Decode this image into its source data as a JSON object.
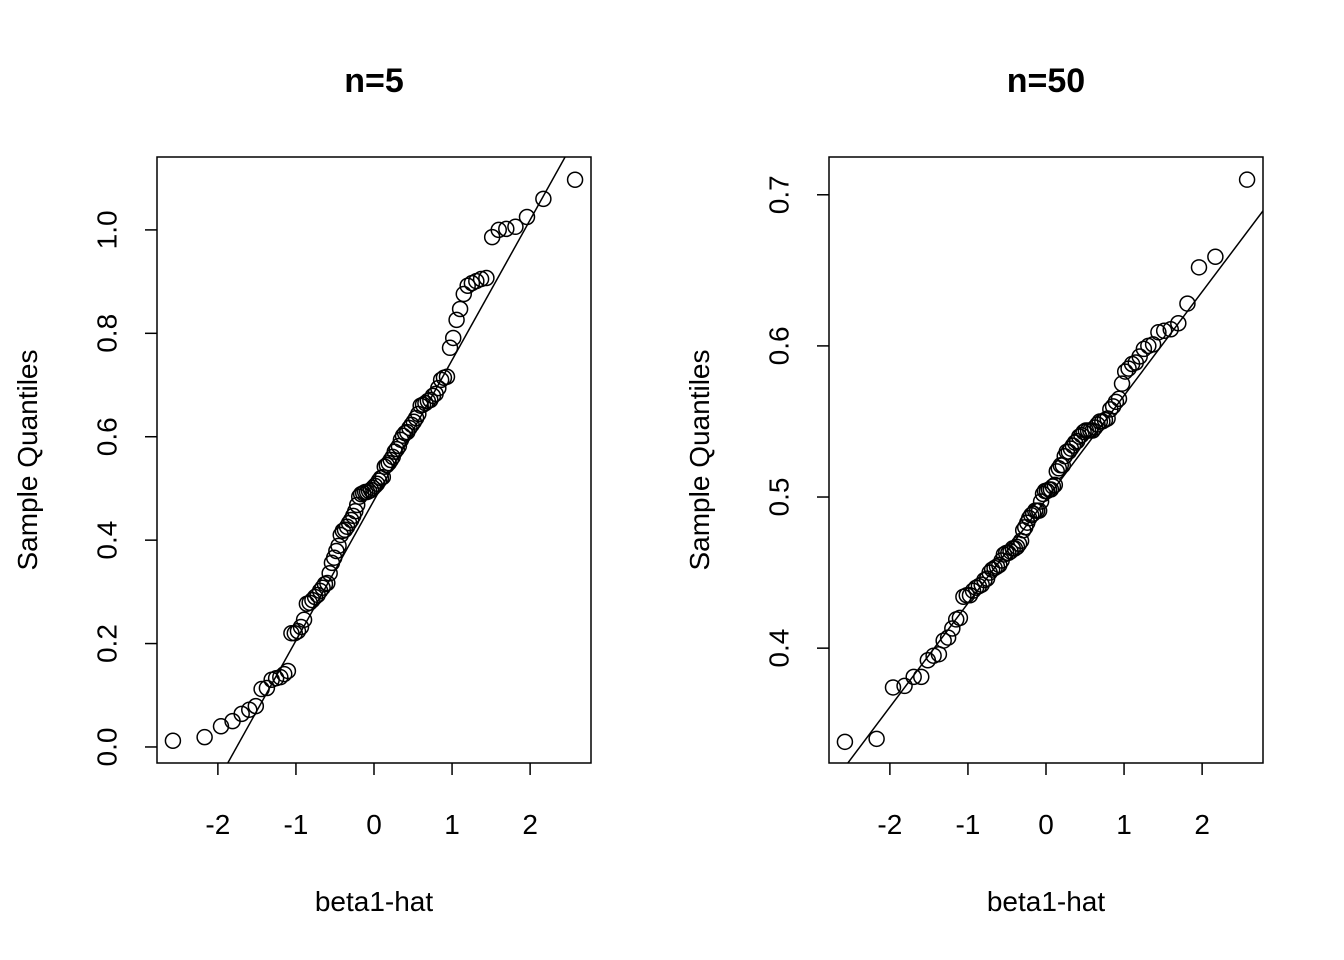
{
  "chart_data": [
    {
      "type": "scatter",
      "title": "n=5",
      "xlabel": "beta1-hat",
      "ylabel": "Sample Quantiles",
      "x": [
        -2.576,
        -2.17,
        -1.96,
        -1.812,
        -1.695,
        -1.598,
        -1.514,
        -1.44,
        -1.372,
        -1.311,
        -1.254,
        -1.2,
        -1.15,
        -1.103,
        -1.058,
        -1.015,
        -0.974,
        -0.935,
        -0.896,
        -0.86,
        -0.824,
        -0.789,
        -0.755,
        -0.722,
        -0.69,
        -0.659,
        -0.628,
        -0.598,
        -0.568,
        -0.539,
        -0.51,
        -0.482,
        -0.454,
        -0.426,
        -0.399,
        -0.372,
        -0.345,
        -0.319,
        -0.292,
        -0.266,
        -0.24,
        -0.215,
        -0.189,
        -0.164,
        -0.138,
        -0.113,
        -0.088,
        -0.063,
        -0.038,
        -0.013,
        0.013,
        0.038,
        0.063,
        0.088,
        0.113,
        0.138,
        0.164,
        0.189,
        0.215,
        0.24,
        0.266,
        0.292,
        0.319,
        0.345,
        0.372,
        0.399,
        0.426,
        0.454,
        0.482,
        0.51,
        0.539,
        0.568,
        0.598,
        0.628,
        0.659,
        0.69,
        0.722,
        0.755,
        0.789,
        0.824,
        0.86,
        0.896,
        0.935,
        0.974,
        1.015,
        1.058,
        1.103,
        1.15,
        1.2,
        1.254,
        1.311,
        1.372,
        1.44,
        1.514,
        1.598,
        1.695,
        1.812,
        1.96,
        2.17,
        2.576
      ],
      "values": [
        0.012,
        0.019,
        0.04,
        0.05,
        0.064,
        0.072,
        0.079,
        0.112,
        0.114,
        0.13,
        0.133,
        0.135,
        0.141,
        0.147,
        0.22,
        0.22,
        0.224,
        0.232,
        0.246,
        0.277,
        0.279,
        0.284,
        0.29,
        0.294,
        0.302,
        0.308,
        0.315,
        0.317,
        0.336,
        0.356,
        0.366,
        0.379,
        0.389,
        0.41,
        0.418,
        0.42,
        0.426,
        0.433,
        0.439,
        0.447,
        0.456,
        0.468,
        0.484,
        0.489,
        0.491,
        0.493,
        0.493,
        0.495,
        0.497,
        0.501,
        0.505,
        0.509,
        0.515,
        0.52,
        0.522,
        0.542,
        0.545,
        0.549,
        0.555,
        0.561,
        0.571,
        0.576,
        0.582,
        0.594,
        0.602,
        0.607,
        0.609,
        0.617,
        0.623,
        0.629,
        0.636,
        0.644,
        0.66,
        0.662,
        0.665,
        0.669,
        0.671,
        0.679,
        0.683,
        0.694,
        0.71,
        0.714,
        0.716,
        0.772,
        0.791,
        0.826,
        0.847,
        0.876,
        0.892,
        0.897,
        0.901,
        0.905,
        0.907,
        0.986,
        1.0,
        1.002,
        1.006,
        1.025,
        1.06,
        1.097
      ],
      "color": "#000000",
      "qqline": {
        "intercept": 0.477,
        "slope": 0.2712
      },
      "xlim": [
        -2.78,
        2.78
      ],
      "xticks": [
        -2,
        -1,
        0,
        1,
        2
      ],
      "ylim": [
        -0.031,
        1.141
      ],
      "yticks": [
        {
          "value": 0,
          "label": "0.0"
        },
        0.2,
        0.4,
        0.6,
        0.8,
        {
          "value": 1,
          "label": "1.0"
        }
      ]
    },
    {
      "type": "scatter",
      "title": "n=50",
      "xlabel": "beta1-hat",
      "ylabel": "Sample Quantiles",
      "x": [
        -2.576,
        -2.17,
        -1.96,
        -1.812,
        -1.695,
        -1.598,
        -1.514,
        -1.44,
        -1.372,
        -1.311,
        -1.254,
        -1.2,
        -1.15,
        -1.103,
        -1.058,
        -1.015,
        -0.974,
        -0.935,
        -0.896,
        -0.86,
        -0.824,
        -0.789,
        -0.755,
        -0.722,
        -0.69,
        -0.659,
        -0.628,
        -0.598,
        -0.568,
        -0.539,
        -0.51,
        -0.482,
        -0.454,
        -0.426,
        -0.399,
        -0.372,
        -0.345,
        -0.319,
        -0.292,
        -0.266,
        -0.24,
        -0.215,
        -0.189,
        -0.164,
        -0.138,
        -0.113,
        -0.088,
        -0.063,
        -0.038,
        -0.013,
        0.013,
        0.038,
        0.063,
        0.088,
        0.113,
        0.138,
        0.164,
        0.189,
        0.215,
        0.24,
        0.266,
        0.292,
        0.319,
        0.345,
        0.372,
        0.399,
        0.426,
        0.454,
        0.482,
        0.51,
        0.539,
        0.568,
        0.598,
        0.628,
        0.659,
        0.69,
        0.722,
        0.755,
        0.789,
        0.824,
        0.86,
        0.896,
        0.935,
        0.974,
        1.015,
        1.058,
        1.103,
        1.15,
        1.2,
        1.254,
        1.311,
        1.372,
        1.44,
        1.514,
        1.598,
        1.695,
        1.812,
        1.96,
        2.17,
        2.576
      ],
      "values": [
        0.338,
        0.34,
        0.374,
        0.375,
        0.381,
        0.381,
        0.392,
        0.395,
        0.396,
        0.405,
        0.407,
        0.413,
        0.419,
        0.42,
        0.434,
        0.435,
        0.435,
        0.438,
        0.44,
        0.441,
        0.442,
        0.445,
        0.446,
        0.45,
        0.452,
        0.453,
        0.454,
        0.455,
        0.458,
        0.462,
        0.463,
        0.463,
        0.464,
        0.466,
        0.466,
        0.467,
        0.469,
        0.471,
        0.478,
        0.48,
        0.483,
        0.486,
        0.488,
        0.489,
        0.491,
        0.491,
        0.491,
        0.497,
        0.502,
        0.504,
        0.504,
        0.505,
        0.505,
        0.507,
        0.508,
        0.517,
        0.519,
        0.521,
        0.521,
        0.527,
        0.53,
        0.53,
        0.532,
        0.534,
        0.536,
        0.537,
        0.54,
        0.541,
        0.543,
        0.544,
        0.544,
        0.544,
        0.544,
        0.546,
        0.548,
        0.55,
        0.55,
        0.551,
        0.552,
        0.558,
        0.56,
        0.563,
        0.565,
        0.575,
        0.583,
        0.585,
        0.588,
        0.589,
        0.593,
        0.598,
        0.6,
        0.601,
        0.609,
        0.61,
        0.611,
        0.615,
        0.628,
        0.652,
        0.659,
        0.71
      ],
      "color": "#000000",
      "qqline": {
        "intercept": 0.4984,
        "slope": 0.0687
      },
      "xlim": [
        -2.78,
        2.78
      ],
      "xticks": [
        -2,
        -1,
        0,
        1,
        2
      ],
      "ylim": [
        0.324,
        0.725
      ],
      "yticks": [
        0.4,
        0.5,
        0.6,
        0.7
      ]
    }
  ]
}
